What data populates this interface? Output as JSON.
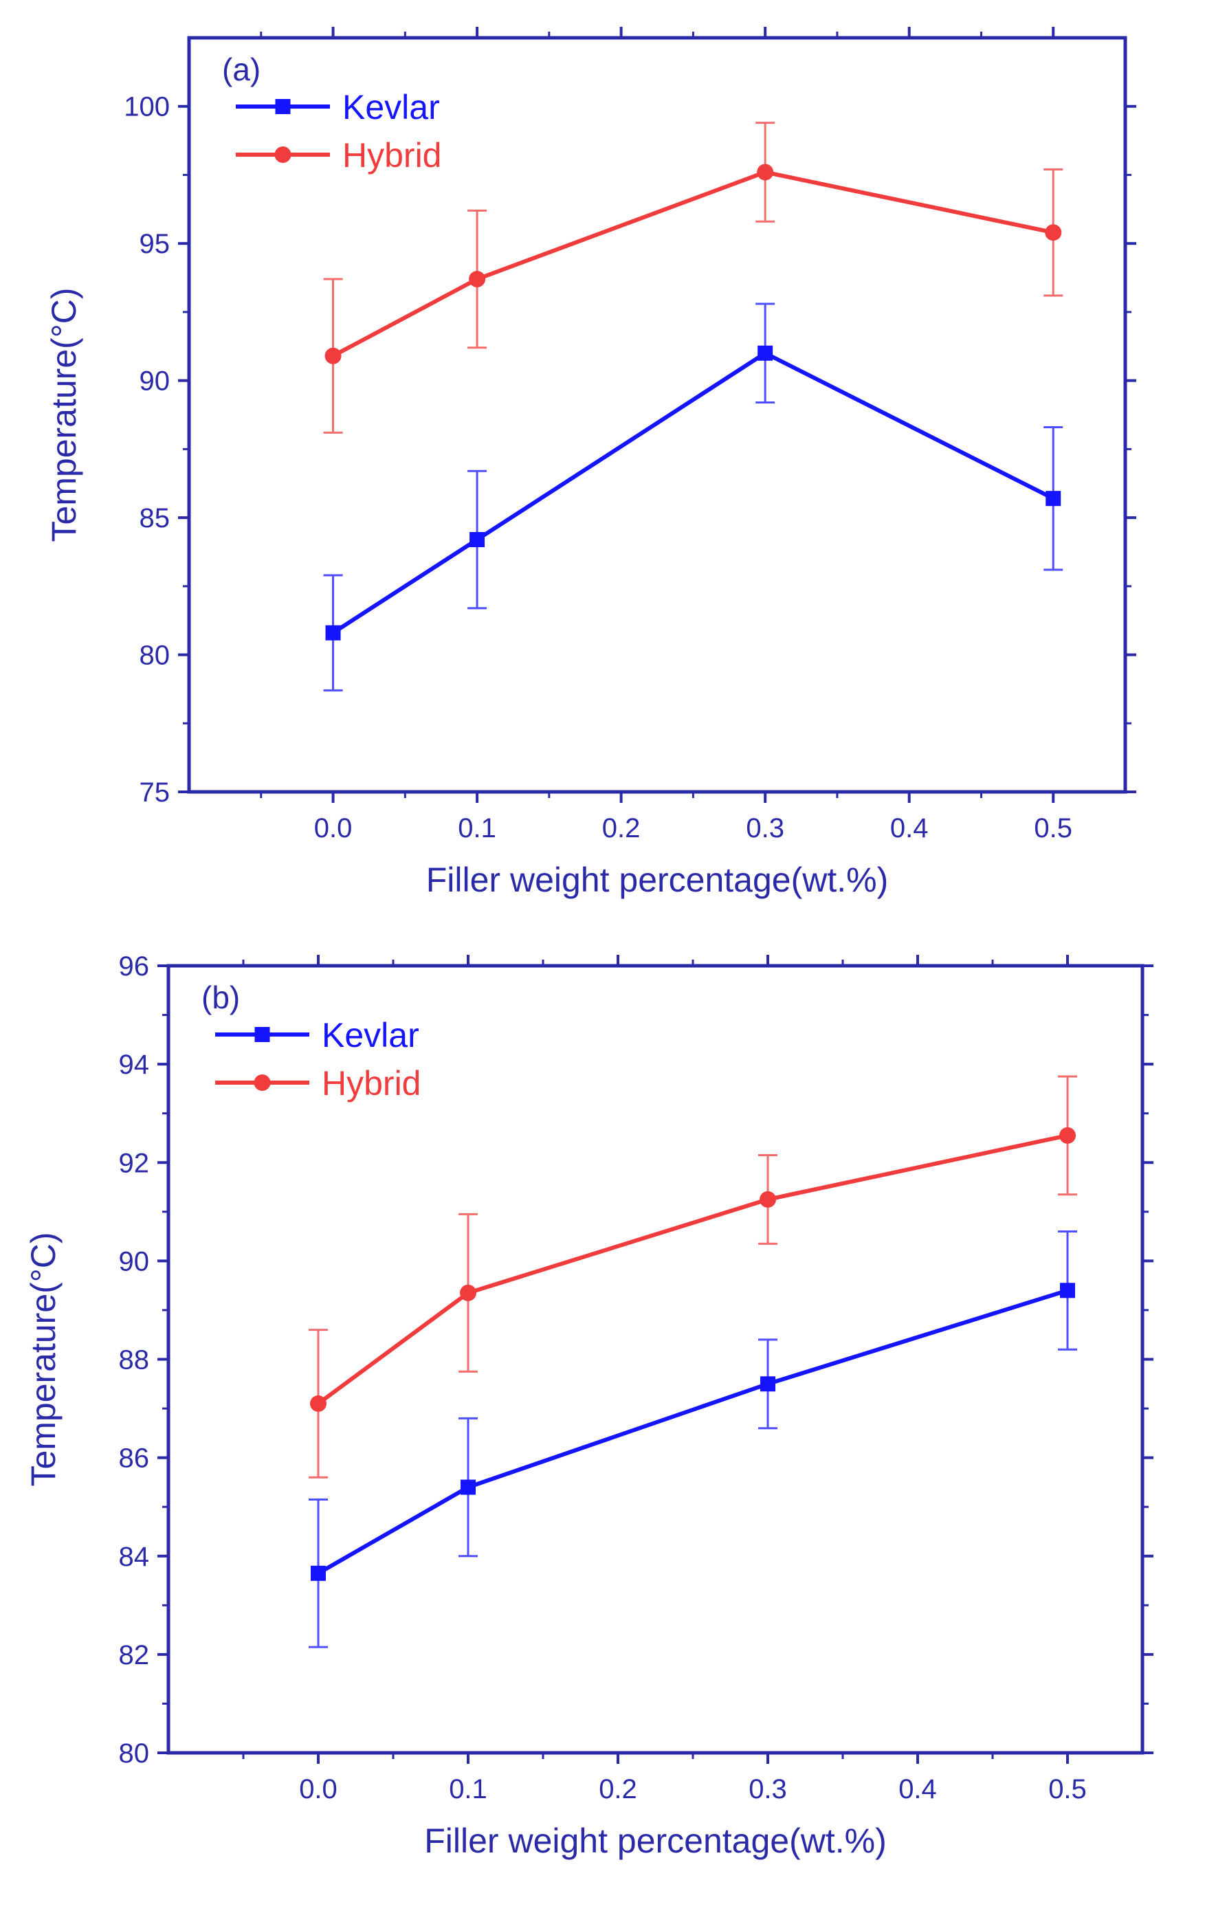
{
  "chart_data": [
    {
      "type": "line",
      "panel_label": "(a)",
      "xlabel": "Filler weight percentage(wt.%)",
      "ylabel": "Temperature(°C)",
      "x": [
        0.0,
        0.1,
        0.3,
        0.5
      ],
      "xlim": [
        -0.1,
        0.55
      ],
      "ylim": [
        75,
        102.5
      ],
      "xticks": [
        0.0,
        0.1,
        0.2,
        0.3,
        0.4,
        0.5
      ],
      "xtick_labels": [
        "0.0",
        "0.1",
        "0.2",
        "0.3",
        "0.4",
        "0.5"
      ],
      "yticks": [
        75,
        80,
        85,
        90,
        95,
        100
      ],
      "ytick_labels": [
        "75",
        "80",
        "85",
        "90",
        "95",
        "100"
      ],
      "legend_position": "top-left",
      "series": [
        {
          "name": "Kevlar",
          "color": "#1414ff",
          "marker": "square",
          "values": [
            80.8,
            84.2,
            91.0,
            85.7
          ],
          "errors": [
            2.1,
            2.5,
            1.8,
            2.6
          ]
        },
        {
          "name": "Hybrid",
          "color": "#f03c3c",
          "marker": "circle",
          "values": [
            90.9,
            93.7,
            97.6,
            95.4
          ],
          "errors": [
            2.8,
            2.5,
            1.8,
            2.3
          ]
        }
      ]
    },
    {
      "type": "line",
      "panel_label": "(b)",
      "xlabel": "Filler weight percentage(wt.%)",
      "ylabel": "Temperature(°C)",
      "x": [
        0.0,
        0.1,
        0.3,
        0.5
      ],
      "xlim": [
        -0.1,
        0.55
      ],
      "ylim": [
        80,
        96
      ],
      "xticks": [
        0.0,
        0.1,
        0.2,
        0.3,
        0.4,
        0.5
      ],
      "xtick_labels": [
        "0.0",
        "0.1",
        "0.2",
        "0.3",
        "0.4",
        "0.5"
      ],
      "yticks": [
        80,
        82,
        84,
        86,
        88,
        90,
        92,
        94,
        96
      ],
      "ytick_labels": [
        "80",
        "82",
        "84",
        "86",
        "88",
        "90",
        "92",
        "94",
        "96"
      ],
      "legend_position": "top-left",
      "series": [
        {
          "name": "Kevlar",
          "color": "#1414ff",
          "marker": "square",
          "values": [
            83.65,
            85.4,
            87.5,
            89.4
          ],
          "errors": [
            1.5,
            1.4,
            0.9,
            1.2
          ]
        },
        {
          "name": "Hybrid",
          "color": "#f03c3c",
          "marker": "circle",
          "values": [
            87.1,
            89.35,
            91.25,
            92.55
          ],
          "errors": [
            1.5,
            1.6,
            0.9,
            1.2
          ]
        }
      ]
    }
  ]
}
